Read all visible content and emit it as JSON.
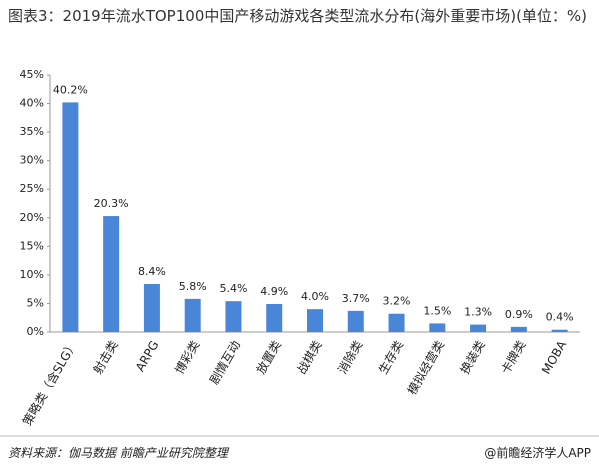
{
  "chart_data": {
    "type": "bar",
    "title": "图表3：2019年流水TOP100中国产移动游戏各类型流水分布(海外重要市场)(单位：%)",
    "categories": [
      "策略类（含SLG）",
      "射击类",
      "ARPG",
      "博彩类",
      "剧情互动",
      "放置类",
      "战棋类",
      "消除类",
      "生存类",
      "模拟经营类",
      "换装类",
      "卡牌类",
      "MOBA"
    ],
    "values": [
      40.2,
      20.3,
      8.4,
      5.8,
      5.4,
      4.9,
      4.0,
      3.7,
      3.2,
      1.5,
      1.3,
      0.9,
      0.4
    ],
    "value_labels": [
      "40.2%",
      "20.3%",
      "8.4%",
      "5.8%",
      "5.4%",
      "4.9%",
      "4.0%",
      "3.7%",
      "3.2%",
      "1.5%",
      "1.3%",
      "0.9%",
      "0.4%"
    ],
    "color": "#4a86d8",
    "ylim": [
      0,
      45
    ],
    "yticks": [
      {
        "value": 0,
        "label": "0%"
      },
      {
        "value": 5,
        "label": "5%"
      },
      {
        "value": 10,
        "label": "10%"
      },
      {
        "value": 15,
        "label": "15%"
      },
      {
        "value": 20,
        "label": "20%"
      },
      {
        "value": 25,
        "label": "25%"
      },
      {
        "value": 30,
        "label": "30%"
      },
      {
        "value": 35,
        "label": "35%"
      },
      {
        "value": 40,
        "label": "40%"
      },
      {
        "value": 45,
        "label": "45%"
      }
    ],
    "source": "资料来源：伽马数据 前瞻产业研究院整理",
    "credit": "@前瞻经济学人APP"
  }
}
